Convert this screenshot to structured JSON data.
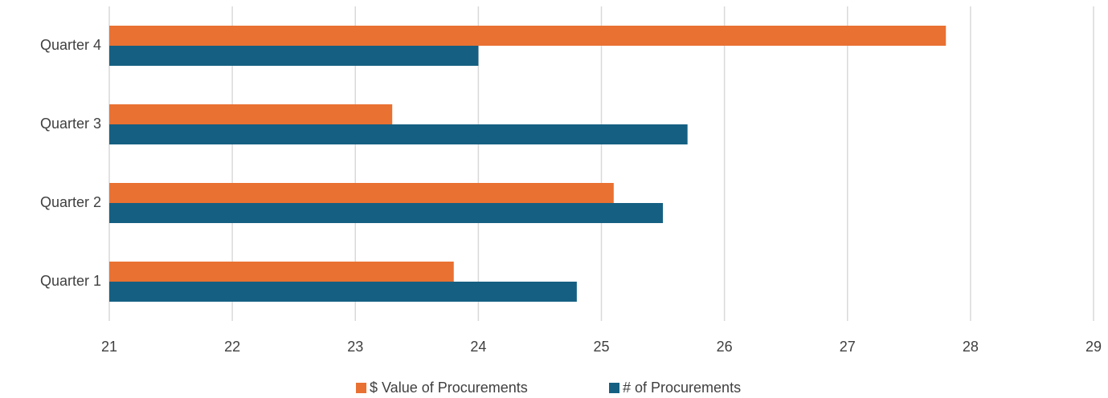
{
  "chart_data": {
    "type": "barh",
    "categories": [
      "Quarter 1",
      "Quarter 2",
      "Quarter 3",
      "Quarter 4"
    ],
    "series": [
      {
        "name": "$ Value of Procurements",
        "color": "#e97132",
        "values": [
          23.8,
          25.1,
          23.3,
          27.8
        ]
      },
      {
        "name": "# of Procurements",
        "color": "#156082",
        "values": [
          24.8,
          25.5,
          25.7,
          24.0
        ]
      }
    ],
    "xlim": [
      21,
      29
    ],
    "xticks": [
      21,
      22,
      23,
      24,
      25,
      26,
      27,
      28,
      29
    ],
    "grid": true,
    "legend": "bottom"
  }
}
